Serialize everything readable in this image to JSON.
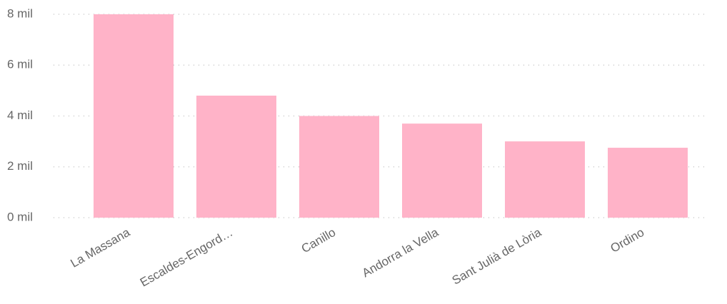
{
  "chart_data": {
    "type": "bar",
    "categories": [
      "La Massana",
      "Escaldes-Engord…",
      "Canillo",
      "Andorra la Vella",
      "Sant Julià de Lòria",
      "Ordino"
    ],
    "values": [
      8000,
      4800,
      4000,
      3700,
      3000,
      2750
    ],
    "color": "#ffb3c8",
    "ylim": [
      0,
      8000
    ],
    "yticks": [
      {
        "value": 0,
        "label": "0 mil"
      },
      {
        "value": 2000,
        "label": "2 mil"
      },
      {
        "value": 4000,
        "label": "4 mil"
      },
      {
        "value": 6000,
        "label": "6 mil"
      },
      {
        "value": 8000,
        "label": "8 mil"
      }
    ],
    "grid": true
  }
}
